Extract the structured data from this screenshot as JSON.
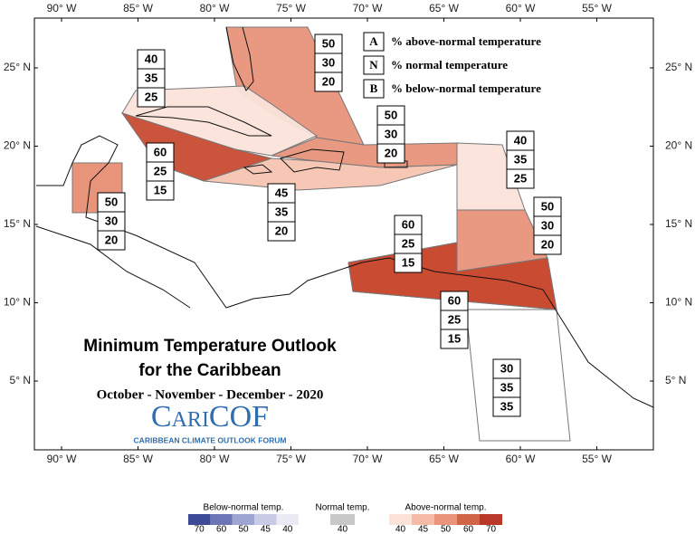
{
  "map": {
    "title": [
      "Minimum Temperature Outlook",
      "for the Caribbean"
    ],
    "period": "October - November - December - 2020",
    "logo": {
      "name": "CariCOF",
      "subtitle": "CARIBBEAN CLIMATE OUTLOOK FORUM"
    },
    "key": [
      {
        "letter": "A",
        "text": "% above-normal temperature"
      },
      {
        "letter": "N",
        "text": "% normal temperature"
      },
      {
        "letter": "B",
        "text": "% below-normal temperature"
      }
    ],
    "lon_ticks": [
      {
        "value": -90,
        "label": "90° W"
      },
      {
        "value": -85,
        "label": "85° W"
      },
      {
        "value": -80,
        "label": "80° W"
      },
      {
        "value": -75,
        "label": "75° W"
      },
      {
        "value": -70,
        "label": "70° W"
      },
      {
        "value": -65,
        "label": "65° W"
      },
      {
        "value": -60,
        "label": "60° W"
      },
      {
        "value": -55,
        "label": "55° W"
      }
    ],
    "lat_ticks": [
      {
        "value": 25,
        "label": "25° N"
      },
      {
        "value": 20,
        "label": "20° N"
      },
      {
        "value": 15,
        "label": "15° N"
      },
      {
        "value": 10,
        "label": "10° N"
      },
      {
        "value": 5,
        "label": "5° N"
      }
    ],
    "regions": [
      {
        "above": 50,
        "normal": 30,
        "below": 20,
        "color": "#e8937a"
      },
      {
        "above": 40,
        "normal": 35,
        "below": 25,
        "color": "#fbe3da"
      },
      {
        "above": 60,
        "normal": 25,
        "below": 15,
        "color": "#c84b32"
      },
      {
        "above": 50,
        "normal": 30,
        "below": 20,
        "color": "#e8937a"
      },
      {
        "above": 45,
        "normal": 35,
        "below": 20,
        "color": "#f7c4b2"
      },
      {
        "above": 50,
        "normal": 30,
        "below": 20,
        "color": "#e8937a"
      },
      {
        "above": 50,
        "normal": 30,
        "below": 20,
        "color": "#e8937a"
      },
      {
        "above": 40,
        "normal": 35,
        "below": 25,
        "color": "#fbe3da"
      },
      {
        "above": 50,
        "normal": 30,
        "below": 20,
        "color": "#e8937a"
      },
      {
        "above": 60,
        "normal": 25,
        "below": 15,
        "color": "#c84b32"
      },
      {
        "above": 60,
        "normal": 25,
        "below": 15,
        "color": "#c84b32"
      },
      {
        "above": 30,
        "normal": 35,
        "below": 35,
        "color": "#ffffff"
      }
    ],
    "colorbar": {
      "below": {
        "label": "Below-normal temp.",
        "values": [
          70,
          60,
          50,
          45,
          40
        ],
        "colors": [
          "#3d4a96",
          "#6c76b7",
          "#9ea5d3",
          "#c9cbe6",
          "#ebebf6"
        ]
      },
      "normal": {
        "label": "Normal temp.",
        "values": [
          40
        ],
        "colors": [
          "#c8c8c8"
        ]
      },
      "above": {
        "label": "Above-normal temp.",
        "values": [
          40,
          45,
          50,
          60,
          70
        ],
        "colors": [
          "#fbe3da",
          "#f5bba6",
          "#e8937a",
          "#d06446",
          "#b9382a"
        ]
      }
    }
  }
}
